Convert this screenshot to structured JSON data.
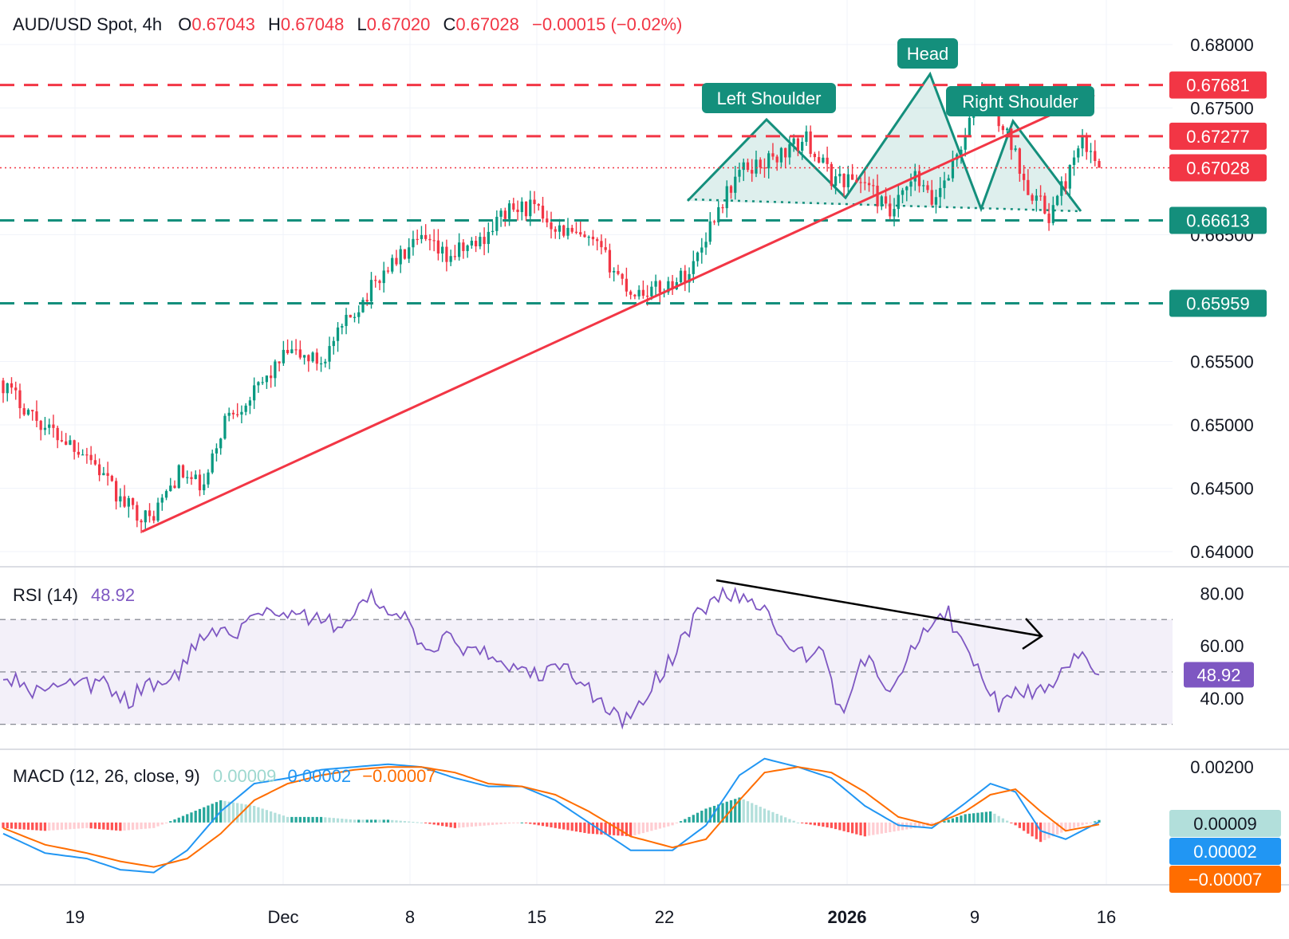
{
  "header": {
    "symbol": "AUD/USD Spot, 4h",
    "open_label": "O",
    "open": "0.67043",
    "high_label": "H",
    "high": "0.67048",
    "low_label": "L",
    "low": "0.67020",
    "close_label": "C",
    "close": "0.67028",
    "change": "−0.00015 (−0.02%)"
  },
  "colors": {
    "up": "#089981",
    "down": "#f23645",
    "teal": "#148f7c",
    "red": "#f23645",
    "rsi": "#7e57c2",
    "macd": "#2196f3",
    "signal": "#ff6d00"
  },
  "chart_data": [
    {
      "type": "candlestick",
      "title": "AUD/USD Spot, 4h",
      "ylim": [
        0.6395,
        0.6815
      ],
      "yticks": [
        "0.68000",
        "0.67500",
        "0.66500",
        "0.65500",
        "0.65000",
        "0.64500",
        "0.64000"
      ],
      "x_labels": [
        "19",
        "Dec",
        "8",
        "15",
        "22",
        "2026",
        "9",
        "16"
      ],
      "price_lines": [
        {
          "value": 0.67681,
          "label": "0.67681",
          "color": "red",
          "style": "dashed"
        },
        {
          "value": 0.67277,
          "label": "0.67277",
          "color": "red",
          "style": "dashed"
        },
        {
          "value": 0.67028,
          "label": "0.67028",
          "color": "red",
          "style": "dotted"
        },
        {
          "value": 0.66613,
          "label": "0.66613",
          "color": "teal",
          "style": "dashed"
        },
        {
          "value": 0.65959,
          "label": "0.65959",
          "color": "teal",
          "style": "dashed"
        }
      ],
      "pattern_labels": [
        "Left Shoulder",
        "Head",
        "Right Shoulder"
      ],
      "key_points": [
        {
          "t": 0,
          "price": 0.6532
        },
        {
          "t": 10,
          "price": 0.6498
        },
        {
          "t": 20,
          "price": 0.6478
        },
        {
          "t": 28,
          "price": 0.644
        },
        {
          "t": 35,
          "price": 0.6425
        },
        {
          "t": 42,
          "price": 0.6462
        },
        {
          "t": 48,
          "price": 0.645
        },
        {
          "t": 53,
          "price": 0.6505
        },
        {
          "t": 60,
          "price": 0.6525
        },
        {
          "t": 68,
          "price": 0.6557
        },
        {
          "t": 76,
          "price": 0.655
        },
        {
          "t": 84,
          "price": 0.659
        },
        {
          "t": 92,
          "price": 0.6625
        },
        {
          "t": 100,
          "price": 0.6645
        },
        {
          "t": 106,
          "price": 0.6632
        },
        {
          "t": 114,
          "price": 0.6645
        },
        {
          "t": 120,
          "price": 0.6668
        },
        {
          "t": 126,
          "price": 0.6672
        },
        {
          "t": 133,
          "price": 0.6655
        },
        {
          "t": 142,
          "price": 0.664
        },
        {
          "t": 150,
          "price": 0.6605
        },
        {
          "t": 157,
          "price": 0.6607
        },
        {
          "t": 164,
          "price": 0.662
        },
        {
          "t": 170,
          "price": 0.6665
        },
        {
          "t": 176,
          "price": 0.67
        },
        {
          "t": 184,
          "price": 0.671
        },
        {
          "t": 192,
          "price": 0.6725
        },
        {
          "t": 198,
          "price": 0.6695
        },
        {
          "t": 206,
          "price": 0.6692
        },
        {
          "t": 212,
          "price": 0.6665
        },
        {
          "t": 218,
          "price": 0.6695
        },
        {
          "t": 222,
          "price": 0.6675
        },
        {
          "t": 228,
          "price": 0.6712
        },
        {
          "t": 234,
          "price": 0.6765
        },
        {
          "t": 240,
          "price": 0.6728
        },
        {
          "t": 245,
          "price": 0.6688
        },
        {
          "t": 250,
          "price": 0.6665
        },
        {
          "t": 255,
          "price": 0.67
        },
        {
          "t": 258,
          "price": 0.6722
        },
        {
          "t": 262,
          "price": 0.67028
        }
      ]
    },
    {
      "type": "line",
      "title": "RSI (14)",
      "value_label": "48.92",
      "ylim": [
        22,
        88
      ],
      "yticks": [
        "80.00",
        "60.00",
        "40.00"
      ],
      "bands": [
        70,
        50,
        30
      ],
      "x": [
        0,
        8,
        16,
        24,
        30,
        34,
        40,
        46,
        52,
        56,
        62,
        70,
        80,
        88,
        96,
        100,
        106,
        112,
        120,
        126,
        134,
        142,
        148,
        154,
        160,
        166,
        172,
        178,
        184,
        190,
        196,
        200,
        206,
        212,
        220,
        226,
        232,
        238,
        244,
        250,
        254,
        258,
        262
      ],
      "values": [
        50,
        42,
        44,
        45,
        38,
        46,
        45,
        60,
        68,
        66,
        74,
        72,
        68,
        78,
        70,
        58,
        62,
        58,
        54,
        48,
        52,
        40,
        30,
        42,
        56,
        72,
        80,
        78,
        70,
        56,
        58,
        34,
        55,
        45,
        66,
        72,
        52,
        38,
        42,
        44,
        52,
        60,
        48.92
      ]
    },
    {
      "type": "line",
      "title": "MACD (12, 26, close, 9)",
      "legend_values": [
        "0.00009",
        "0.00002",
        "−0.00007"
      ],
      "ylim": [
        -0.0021,
        0.00235
      ],
      "yticks": [
        "0.00200"
      ],
      "x": [
        0,
        10,
        20,
        28,
        36,
        44,
        52,
        60,
        68,
        76,
        84,
        92,
        100,
        108,
        116,
        124,
        132,
        140,
        150,
        160,
        168,
        176,
        182,
        190,
        198,
        206,
        214,
        222,
        230,
        236,
        242,
        248,
        254,
        262
      ],
      "macd": [
        -0.0004,
        -0.0011,
        -0.0013,
        -0.0017,
        -0.0018,
        -0.001,
        0.0004,
        0.0014,
        0.0016,
        0.0019,
        0.002,
        0.0021,
        0.002,
        0.0016,
        0.0013,
        0.0013,
        0.0008,
        0.0,
        -0.001,
        -0.001,
        -0.0001,
        0.0017,
        0.0023,
        0.002,
        0.0016,
        0.0006,
        -0.0001,
        -0.0002,
        0.0007,
        0.0014,
        0.0011,
        -0.0003,
        -0.0006,
        2e-05
      ],
      "signal": [
        -0.0002,
        -0.0008,
        -0.0011,
        -0.0014,
        -0.0016,
        -0.0013,
        -0.0004,
        0.0008,
        0.0014,
        0.0017,
        0.0019,
        0.002,
        0.002,
        0.0018,
        0.0014,
        0.0013,
        0.001,
        0.0004,
        -0.0005,
        -0.0009,
        -0.0006,
        0.0008,
        0.0018,
        0.002,
        0.0018,
        0.0011,
        0.0002,
        -0.0001,
        0.0004,
        0.001,
        0.0012,
        0.0004,
        -0.0003,
        -7e-05
      ]
    }
  ]
}
